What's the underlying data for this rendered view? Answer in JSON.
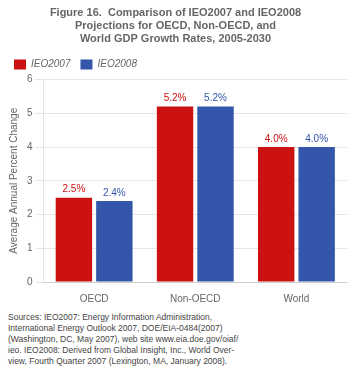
{
  "chart_data": {
    "type": "bar",
    "title": "Figure 16.  Comparison of IEO2007 and IEO2008\nProjections for OECD, Non-OECD, and\nWorld GDP Growth Rates, 2005-2030",
    "ylabel": "Average Annual Percent Change",
    "categories": [
      "OECD",
      "Non-OECD",
      "World"
    ],
    "series": [
      {
        "name": "IEO2007",
        "color": "#CC1111",
        "values": [
          2.5,
          5.2,
          4.0
        ],
        "value_labels": [
          "2.5%",
          "5.2%",
          "4.0%"
        ]
      },
      {
        "name": "IEO2008",
        "color": "#3355AA",
        "values": [
          2.4,
          5.2,
          4.0
        ],
        "value_labels": [
          "2.4%",
          "5.2%",
          "4.0%"
        ]
      }
    ],
    "ylim": [
      0,
      6
    ],
    "yticks": [
      0,
      1,
      2,
      3,
      4,
      5,
      6
    ],
    "grid": true,
    "legend": "upper left",
    "data_labels": true,
    "annotations": [
      "Sources:  IEO2007:  Energy Information Administration,",
      "International Energy Outlook 2007,  DOE/EIA-0484(2007)",
      "(Washington, DC, May 2007), web site www.eia.doe.gov/oiaf/",
      "ieo.  IEO2008:  Derived from Global Insight, Inc., World Over-",
      "view, Fourth Quarter 2007 (Lexington, MA, January 2008)."
    ]
  }
}
